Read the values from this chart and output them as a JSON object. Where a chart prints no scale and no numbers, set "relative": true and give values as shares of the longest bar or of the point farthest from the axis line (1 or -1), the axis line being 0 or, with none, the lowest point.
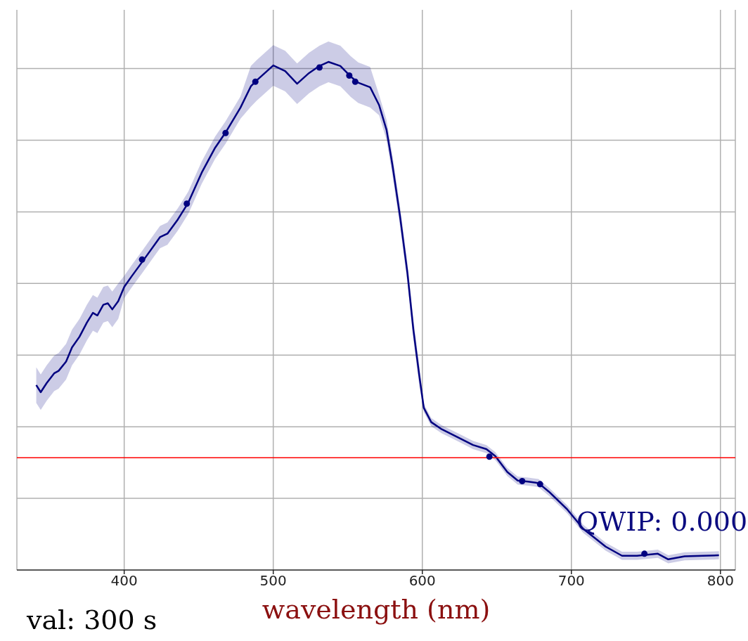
{
  "chart_data": {
    "type": "line",
    "relative": true,
    "xlabel": "wavelength (nm)",
    "xlim": [
      328,
      810
    ],
    "xticks": [
      400,
      500,
      600,
      700,
      800
    ],
    "grid": true,
    "annotations": [
      "QWIP: 0.000",
      "val: 300 s"
    ],
    "ref_lines": [
      {
        "axis": "y",
        "value": 0.221,
        "color": "#ff0000"
      }
    ],
    "series": [
      {
        "color": "#000080",
        "marker": "none",
        "x": [
          341,
          344,
          348,
          353,
          356,
          361,
          365,
          370,
          375,
          379,
          382,
          386,
          389,
          392,
          396,
          400,
          405,
          412,
          424,
          429,
          436,
          443,
          452,
          461,
          468,
          478,
          485,
          489,
          500,
          508,
          516,
          524,
          531,
          537,
          545,
          552,
          557,
          565,
          571,
          576,
          580,
          585,
          590,
          594,
          598,
          601,
          606,
          613,
          624,
          634,
          643,
          649,
          657,
          664,
          671,
          678,
          685,
          697,
          708,
          723,
          734,
          744,
          758,
          765,
          776,
          788,
          799
        ],
        "values": [
          0.364,
          0.35,
          0.368,
          0.387,
          0.392,
          0.41,
          0.438,
          0.459,
          0.487,
          0.506,
          0.501,
          0.522,
          0.525,
          0.513,
          0.529,
          0.557,
          0.578,
          0.606,
          0.655,
          0.662,
          0.69,
          0.723,
          0.782,
          0.831,
          0.861,
          0.91,
          0.952,
          0.964,
          0.993,
          0.982,
          0.957,
          0.978,
          0.992,
          1.0,
          0.992,
          0.971,
          0.959,
          0.95,
          0.915,
          0.866,
          0.796,
          0.697,
          0.585,
          0.473,
          0.382,
          0.319,
          0.291,
          0.277,
          0.261,
          0.246,
          0.238,
          0.224,
          0.193,
          0.176,
          0.174,
          0.171,
          0.154,
          0.12,
          0.081,
          0.046,
          0.028,
          0.028,
          0.032,
          0.021,
          0.027,
          0.028,
          0.029
        ],
        "lower": [
          0.329,
          0.315,
          0.333,
          0.352,
          0.357,
          0.375,
          0.403,
          0.424,
          0.452,
          0.471,
          0.466,
          0.487,
          0.49,
          0.478,
          0.494,
          0.535,
          0.556,
          0.584,
          0.633,
          0.64,
          0.668,
          0.701,
          0.76,
          0.809,
          0.839,
          0.888,
          0.912,
          0.924,
          0.953,
          0.942,
          0.917,
          0.938,
          0.952,
          0.96,
          0.952,
          0.931,
          0.919,
          0.91,
          0.895,
          0.846,
          0.776,
          0.677,
          0.565,
          0.453,
          0.362,
          0.311,
          0.283,
          0.269,
          0.253,
          0.238,
          0.23,
          0.216,
          0.185,
          0.168,
          0.166,
          0.163,
          0.146,
          0.112,
          0.073,
          0.038,
          0.02,
          0.02,
          0.024,
          0.013,
          0.019,
          0.02,
          0.021
        ],
        "upper": [
          0.399,
          0.385,
          0.403,
          0.422,
          0.427,
          0.445,
          0.473,
          0.494,
          0.522,
          0.541,
          0.536,
          0.557,
          0.56,
          0.548,
          0.564,
          0.579,
          0.6,
          0.628,
          0.677,
          0.684,
          0.712,
          0.745,
          0.804,
          0.853,
          0.883,
          0.932,
          0.992,
          1.004,
          1.033,
          1.022,
          0.997,
          1.018,
          1.032,
          1.04,
          1.032,
          1.011,
          0.999,
          0.99,
          0.935,
          0.886,
          0.816,
          0.717,
          0.605,
          0.493,
          0.402,
          0.327,
          0.299,
          0.285,
          0.269,
          0.254,
          0.246,
          0.232,
          0.201,
          0.184,
          0.182,
          0.179,
          0.162,
          0.128,
          0.089,
          0.054,
          0.036,
          0.036,
          0.04,
          0.029,
          0.035,
          0.036,
          0.037
        ]
      },
      {
        "type": "scatter",
        "color": "#000080",
        "marker": "circle",
        "x": [
          412,
          442,
          468,
          488,
          531,
          551,
          555,
          645,
          667,
          679,
          749
        ],
        "values": [
          0.611,
          0.721,
          0.86,
          0.961,
          0.989,
          0.973,
          0.961,
          0.223,
          0.175,
          0.169,
          0.032
        ]
      }
    ]
  }
}
